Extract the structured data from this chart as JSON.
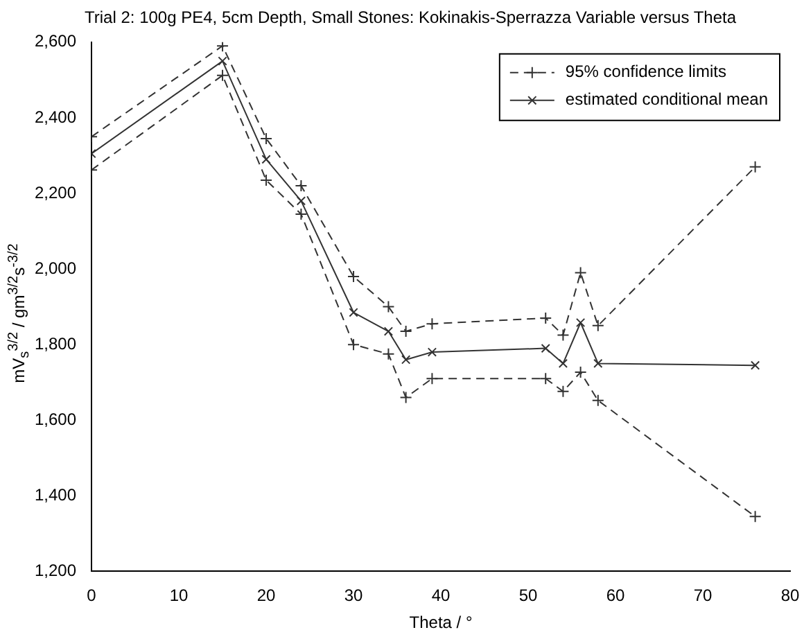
{
  "chart_data": {
    "type": "line",
    "title": "Trial 2: 100g PE4, 5cm Depth, Small Stones: Kokinakis-Sperrazza Variable versus Theta",
    "xlabel": "Theta / °",
    "ylabel": "mV$_{s}$$^{3/2}$ / gm$^{3/2}$s$^{-3/2}$",
    "x": [
      0,
      15,
      20,
      24,
      30,
      34,
      36,
      39,
      52,
      54,
      56,
      58,
      76
    ],
    "series": [
      {
        "name": "95% confidence limits",
        "color": "#333333",
        "line_style": "dashed",
        "marker": "cross",
        "values": [
          2350,
          2590,
          2345,
          2220,
          1980,
          1900,
          1835,
          1855,
          1870,
          1825,
          1990,
          1850,
          2270
        ]
      },
      {
        "name": "estimated conditional mean",
        "color": "#333333",
        "line_style": "solid",
        "marker": "x",
        "values": [
          2305,
          2550,
          2290,
          2180,
          1885,
          1835,
          1760,
          1780,
          1790,
          1750,
          1858,
          1750,
          1745
        ]
      },
      {
        "color": "#333333",
        "line_style": "dashed",
        "marker": "cross",
        "values": [
          2262,
          2512,
          2235,
          2145,
          1800,
          1775,
          1660,
          1710,
          1710,
          1676,
          1727,
          1652,
          1345
        ]
      }
    ],
    "xlim": [
      0,
      80
    ],
    "xticks": [
      0,
      10,
      20,
      30,
      40,
      50,
      60,
      70,
      80
    ],
    "ylim": [
      1200,
      2600
    ],
    "yticks": [
      {
        "value": 1200,
        "label": "1,200"
      },
      {
        "value": 1400,
        "label": "1,400"
      },
      {
        "value": 1600,
        "label": "1,600"
      },
      {
        "value": 1800,
        "label": "1,800"
      },
      {
        "value": 2000,
        "label": "2,000"
      },
      {
        "value": 2200,
        "label": "2,200"
      },
      {
        "value": 2400,
        "label": "2,400"
      },
      {
        "value": 2600,
        "label": "2,600"
      }
    ],
    "grid": false,
    "legend": "top right"
  }
}
